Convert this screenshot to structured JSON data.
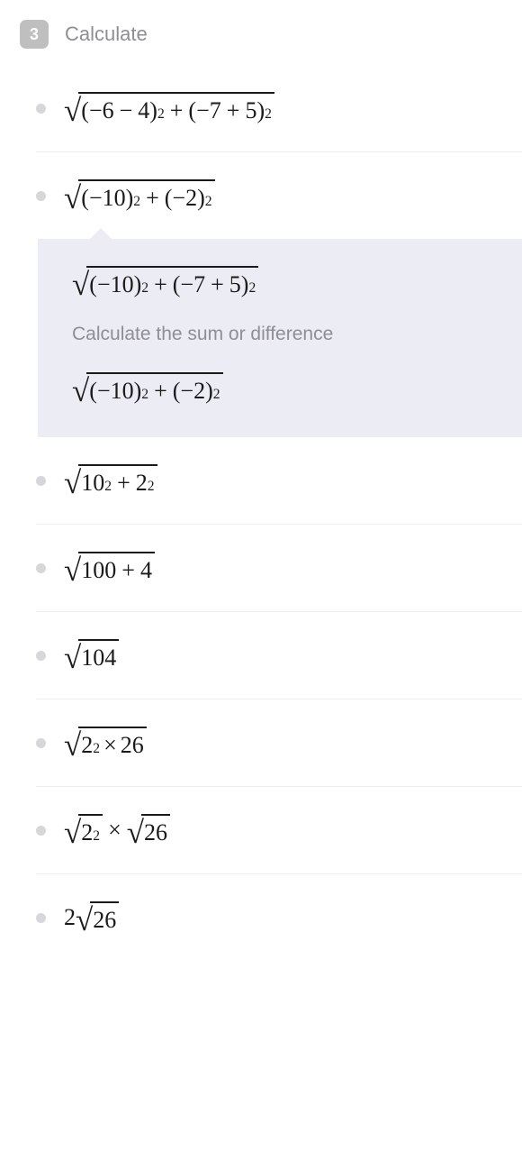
{
  "header": {
    "step_number": "3",
    "title": "Calculate"
  },
  "colors": {
    "badge_bg": "#bfbfbf",
    "muted_text": "#8e8e93",
    "bullet": "#d7d7db",
    "math_text": "#1a1a1a",
    "expansion_bg": "#ececf4",
    "divider": "#eeeeee"
  },
  "steps": [
    {
      "type": "sqrt",
      "radicand_latex": "(−6 − 4)^2 + (−7 + 5)^2",
      "p1a": "−6",
      "p1b": "4",
      "p1op": "−",
      "p2a": "−7",
      "p2b": "5",
      "p2op": "+"
    },
    {
      "type": "sqrt",
      "radicand_latex": "(−10)^2 + (−2)^2",
      "t1": "−10",
      "t2": "−2"
    },
    {
      "type": "sqrt",
      "radicand_latex": "10^2 + 2^2",
      "b1": "10",
      "b2": "2"
    },
    {
      "type": "sqrt",
      "radicand_latex": "100 + 4",
      "n1": "100",
      "n2": "4"
    },
    {
      "type": "sqrt_single",
      "radicand_latex": "104",
      "n": "104"
    },
    {
      "type": "sqrt",
      "radicand_latex": "2^2 × 26",
      "f1": "2",
      "f2": "26"
    },
    {
      "type": "sqrt_prod",
      "radicand_latex": "√(2^2) × √26",
      "g1": "2",
      "g2": "26"
    },
    {
      "type": "coef_sqrt",
      "radicand_latex": "2√26",
      "coef": "2",
      "rad": "26"
    }
  ],
  "expansion": {
    "after_step_index": 1,
    "line1": {
      "t1": "−10",
      "p2a": "−7",
      "p2b": "5",
      "p2op": "+"
    },
    "hint": "Calculate the sum or difference",
    "line2": {
      "t1": "−10",
      "t2": "−2"
    }
  }
}
